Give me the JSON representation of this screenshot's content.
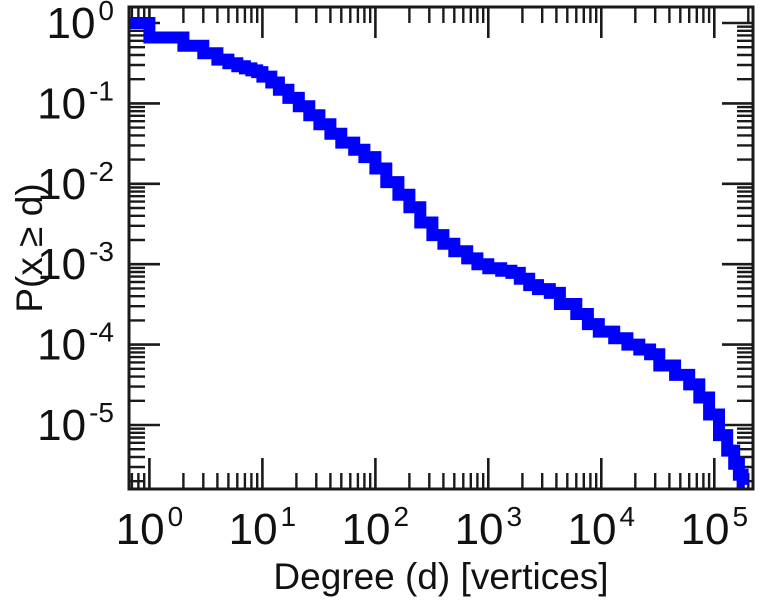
{
  "figure": {
    "background": "#ffffff",
    "frame_color": "#1a1a1a"
  },
  "chart_data": {
    "type": "line",
    "subtype": "ccdf-step-curve",
    "title": "",
    "xlabel": "Degree (d) [vertices]",
    "ylabel": "P(x ≥ d)",
    "x_scale": "log",
    "y_scale": "log",
    "xlim": [
      0.66,
      220000
    ],
    "ylim": [
      1.6e-06,
      1.58
    ],
    "grid": false,
    "legend": "none",
    "x_ticks": [
      {
        "value": 1,
        "base": "10",
        "exp": "0"
      },
      {
        "value": 10,
        "base": "10",
        "exp": "1"
      },
      {
        "value": 100,
        "base": "10",
        "exp": "2"
      },
      {
        "value": 1000,
        "base": "10",
        "exp": "3"
      },
      {
        "value": 10000,
        "base": "10",
        "exp": "4"
      },
      {
        "value": 100000,
        "base": "10",
        "exp": "5"
      }
    ],
    "y_ticks": [
      {
        "value": 1,
        "base": "10",
        "exp": "0"
      },
      {
        "value": 0.1,
        "base": "10",
        "exp": "-1"
      },
      {
        "value": 0.01,
        "base": "10",
        "exp": "-2"
      },
      {
        "value": 0.001,
        "base": "10",
        "exp": "-3"
      },
      {
        "value": 0.0001,
        "base": "10",
        "exp": "-4"
      },
      {
        "value": 1e-05,
        "base": "10",
        "exp": "-5"
      }
    ],
    "series": [
      {
        "name": "degree-ccdf",
        "color": "#0000ff",
        "marker": "filled-square",
        "points": [
          [
            1,
            1.0
          ],
          [
            2,
            0.66
          ],
          [
            3,
            0.52
          ],
          [
            4,
            0.42
          ],
          [
            5,
            0.35
          ],
          [
            6,
            0.315
          ],
          [
            7,
            0.29
          ],
          [
            8,
            0.272
          ],
          [
            9,
            0.257
          ],
          [
            10,
            0.245
          ],
          [
            12,
            0.215
          ],
          [
            14,
            0.182
          ],
          [
            17,
            0.148
          ],
          [
            21,
            0.117
          ],
          [
            26,
            0.092
          ],
          [
            32,
            0.071
          ],
          [
            40,
            0.055
          ],
          [
            50,
            0.042
          ],
          [
            65,
            0.0325
          ],
          [
            80,
            0.0265
          ],
          [
            100,
            0.0215
          ],
          [
            125,
            0.0155
          ],
          [
            160,
            0.0105
          ],
          [
            200,
            0.0073
          ],
          [
            250,
            0.0051
          ],
          [
            320,
            0.0033
          ],
          [
            400,
            0.0023
          ],
          [
            500,
            0.0018
          ],
          [
            650,
            0.00145
          ],
          [
            800,
            0.00118
          ],
          [
            1000,
            0.001
          ],
          [
            1300,
            0.00089
          ],
          [
            1600,
            0.00083
          ],
          [
            1900,
            0.00078
          ],
          [
            2300,
            0.00066
          ],
          [
            2750,
            0.00055
          ],
          [
            3500,
            0.00049
          ],
          [
            4300,
            0.00044
          ],
          [
            6000,
            0.00032
          ],
          [
            7600,
            0.00024
          ],
          [
            9500,
            0.00018
          ],
          [
            13000,
            0.000145
          ],
          [
            17000,
            0.00012
          ],
          [
            21700,
            0.0001
          ],
          [
            27000,
            8.7e-05
          ],
          [
            32600,
            7.6e-05
          ],
          [
            45000,
            5.5e-05
          ],
          [
            60000,
            4.2e-05
          ],
          [
            73600,
            3.2e-05
          ],
          [
            90000,
            2.2e-05
          ],
          [
            110000,
            1.35e-05
          ],
          [
            130000,
            7.5e-06
          ],
          [
            150000,
            4.8e-06
          ],
          [
            165000,
            3.3e-06
          ],
          [
            178000,
            2.4e-06
          ],
          [
            186000,
            1.8e-06
          ]
        ]
      }
    ]
  }
}
